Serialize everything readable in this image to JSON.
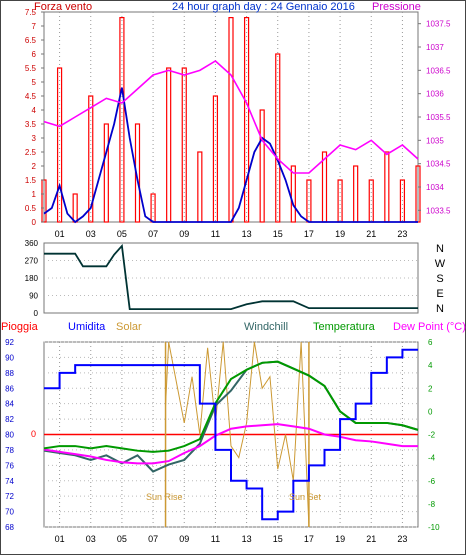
{
  "top_chart": {
    "title": "24 hour graph day : 24 Gennaio 2016",
    "left_label": "Forza vento",
    "right_label": "Pressione",
    "left_ticks": [
      "0",
      "0.5",
      "1",
      "1.5",
      "2",
      "2.5",
      "3",
      "3.5",
      "4",
      "4.5",
      "5",
      "5.5",
      "6",
      "6.5",
      "7",
      "7.5"
    ],
    "right_ticks": [
      "1033.5",
      "1034",
      "1034.5",
      "1035",
      "1035.5",
      "1036",
      "1036.5",
      "1037",
      "1037.5"
    ],
    "x_ticks": [
      "01",
      "03",
      "05",
      "07",
      "09",
      "11",
      "13",
      "15",
      "17",
      "19",
      "21",
      "23"
    ],
    "colors": {
      "wind_bars": "#ff0000",
      "wind_line": "#0000cc",
      "pressure": "#ff00ff",
      "axis_left": "#cc0000",
      "axis_right": "#cc00cc",
      "title": "#0033cc"
    }
  },
  "dir_chart": {
    "left_ticks": [
      "0",
      "90",
      "180",
      "270",
      "360"
    ],
    "right_labels": [
      "N",
      "W",
      "S",
      "E",
      "N"
    ]
  },
  "bottom_chart": {
    "labels": {
      "pioggia": "Pioggia",
      "umidita": "Umidita",
      "solar": "Solar",
      "windchill": "Windchill",
      "temperatura": "Temperatura",
      "dewpoint": "Dew Point (°C)"
    },
    "left_ticks": [
      "68",
      "70",
      "72",
      "74",
      "76",
      "78",
      "80",
      "82",
      "84",
      "86",
      "88",
      "90",
      "92"
    ],
    "right_ticks": [
      "-10",
      "-8",
      "-6",
      "-4",
      "-2",
      "0",
      "2",
      "4",
      "6"
    ],
    "x_ticks": [
      "01",
      "03",
      "05",
      "07",
      "09",
      "11",
      "13",
      "15",
      "17",
      "19",
      "21",
      "23"
    ],
    "rain_zero": "0",
    "annotations": {
      "sunrise": "Sun Rise",
      "sunset": "Sun Set"
    },
    "colors": {
      "pioggia": "#ff0000",
      "umidita": "#0000ff",
      "solar": "#cc9933",
      "windchill": "#336666",
      "temperatura": "#009900",
      "dewpoint": "#ff00ff"
    }
  },
  "chart_data": [
    {
      "type": "bar",
      "title": "24 hour graph day : 24 Gennaio 2016",
      "ylabel": "Forza vento",
      "y2label": "Pressione",
      "ylim": [
        0,
        7.5
      ],
      "y2lim": [
        1033.25,
        1037.75
      ],
      "xlim": [
        0,
        24
      ],
      "series": [
        {
          "name": "Forza vento",
          "color": "#ff0000",
          "x": [
            0,
            1,
            2,
            3,
            4,
            5,
            6,
            7,
            8,
            9,
            10,
            11,
            12,
            13,
            14,
            15,
            16,
            17,
            18,
            19,
            20,
            21,
            22,
            23,
            24
          ],
          "values": [
            1.5,
            5.5,
            1,
            4.5,
            3.5,
            7.3,
            3.5,
            1,
            5.5,
            5.5,
            2.5,
            4.5,
            7.3,
            7.3,
            4,
            6,
            2,
            1.5,
            2.5,
            1.5,
            2,
            1.5,
            2.5,
            1.5,
            2
          ]
        },
        {
          "name": "Forza vento (media)",
          "color": "#0000cc",
          "x": [
            0,
            0.5,
            1,
            1.5,
            2,
            2.5,
            3,
            3.5,
            4,
            4.5,
            5,
            5.5,
            6,
            6.5,
            7,
            7.5,
            8,
            9,
            10,
            11,
            12,
            12.5,
            13,
            13.5,
            14,
            14.5,
            15,
            15.5,
            16,
            16.5,
            17,
            18,
            19,
            20,
            21,
            22,
            23,
            24
          ],
          "values": [
            0.3,
            0.5,
            1.3,
            0.3,
            0,
            0.2,
            0.5,
            1.5,
            2.5,
            3.5,
            4.8,
            3,
            1.5,
            0.2,
            0,
            0,
            0,
            0,
            0,
            0,
            0,
            0.5,
            1.5,
            2.5,
            3,
            2.8,
            2.2,
            1.5,
            0.6,
            0.2,
            0,
            0,
            0,
            0,
            0,
            0,
            0,
            0
          ]
        },
        {
          "name": "Pressione",
          "color": "#ff00ff",
          "x": [
            0,
            1,
            2,
            3,
            4,
            5,
            6,
            7,
            8,
            9,
            10,
            11,
            12,
            13,
            14,
            15,
            16,
            17,
            18,
            19,
            20,
            21,
            22,
            23,
            24
          ],
          "values": [
            1035.4,
            1035.3,
            1035.5,
            1035.7,
            1035.9,
            1035.8,
            1036.1,
            1036.4,
            1036.5,
            1036.4,
            1036.5,
            1036.7,
            1036.4,
            1035.8,
            1035,
            1034.6,
            1034.3,
            1034.3,
            1034.6,
            1034.9,
            1034.8,
            1035,
            1034.7,
            1034.9,
            1034.6
          ]
        }
      ]
    },
    {
      "type": "line",
      "ylim": [
        0,
        360
      ],
      "xlim": [
        0,
        24
      ],
      "series": [
        {
          "x": [
            0,
            2,
            2.5,
            3,
            4,
            4.5,
            5,
            5.5,
            8,
            10,
            11,
            12,
            13,
            14,
            15,
            16,
            17,
            18,
            19,
            20,
            21,
            22,
            23,
            24
          ],
          "values": [
            305,
            305,
            240,
            240,
            240,
            300,
            345,
            20,
            20,
            20,
            20,
            20,
            45,
            60,
            60,
            60,
            25,
            25,
            25,
            25,
            25,
            25,
            25,
            25
          ]
        }
      ]
    },
    {
      "type": "line",
      "ylim": [
        68,
        92
      ],
      "y2lim": [
        -10,
        6
      ],
      "xlim": [
        0,
        24
      ],
      "series": [
        {
          "name": "Umidita",
          "color": "#0000ff",
          "x": [
            0,
            1,
            2,
            3,
            4,
            5,
            6,
            7,
            8,
            9,
            10,
            11,
            12,
            13,
            14,
            15,
            16,
            17,
            18,
            19,
            20,
            21,
            22,
            23,
            24
          ],
          "values": [
            86,
            88,
            89,
            89,
            89,
            89,
            89,
            89,
            89,
            89,
            84,
            78,
            74,
            73,
            69,
            70,
            74,
            76,
            78,
            82,
            84,
            88,
            90,
            91,
            91
          ]
        },
        {
          "name": "Temperatura",
          "color": "#009900",
          "x": [
            0,
            1,
            2,
            3,
            4,
            5,
            6,
            7,
            8,
            9,
            10,
            11,
            12,
            13,
            14,
            15,
            16,
            17,
            18,
            19,
            20,
            21,
            22,
            23,
            24
          ],
          "values": [
            -3.2,
            -3.0,
            -3.0,
            -3.2,
            -3.0,
            -3.2,
            -3.4,
            -3.5,
            -3.4,
            -3.0,
            -2.4,
            0.7,
            2.8,
            3.6,
            4.2,
            4.3,
            3.7,
            3.1,
            2.2,
            0,
            -1.0,
            -1.0,
            -1.0,
            -1.2,
            -1.6
          ]
        },
        {
          "name": "Windchill",
          "color": "#336666",
          "x": [
            0,
            1,
            2,
            3,
            4,
            5,
            6,
            7,
            8,
            9,
            10,
            11,
            12,
            13,
            14,
            15,
            16,
            17,
            18,
            19,
            20,
            21,
            22,
            23,
            24
          ],
          "values": [
            -3.4,
            -3.6,
            -3.8,
            -4.2,
            -3.8,
            -4.5,
            -3.8,
            -5.2,
            -4.6,
            -4.2,
            -2.8,
            0.5,
            1.8,
            3.6,
            4.2,
            4.3,
            3.7,
            3.1,
            2.2,
            0,
            -1.0,
            -1.0,
            -1.0,
            -1.2,
            -1.6
          ]
        },
        {
          "name": "Dew Point (°C)",
          "color": "#ff00ff",
          "x": [
            0,
            1,
            2,
            3,
            4,
            5,
            6,
            7,
            8,
            9,
            10,
            11,
            12,
            13,
            14,
            15,
            16,
            17,
            18,
            19,
            20,
            21,
            22,
            23,
            24
          ],
          "values": [
            -3.3,
            -3.5,
            -3.7,
            -3.9,
            -4.2,
            -4.4,
            -4.5,
            -4.5,
            -4.3,
            -3.6,
            -3.0,
            -2.1,
            -1.5,
            -1.3,
            -1.2,
            -1.1,
            -1.3,
            -1.5,
            -2.0,
            -2.2,
            -2.5,
            -2.6,
            -2.8,
            -3.0,
            -3.0
          ]
        },
        {
          "name": "Solar",
          "color": "#cc9933",
          "x": [
            7.8,
            8,
            9,
            9.5,
            10,
            10.5,
            11,
            11.5,
            12,
            12.5,
            13,
            13.5,
            14,
            14.5,
            15,
            15.5,
            16,
            16.5,
            17
          ],
          "values": [
            0.5,
            6,
            -1,
            3,
            -2,
            5.5,
            -1,
            6,
            -3,
            -4,
            -1,
            6,
            2,
            3,
            -5,
            -2,
            -6,
            6,
            -10
          ]
        },
        {
          "name": "Pioggia",
          "color": "#ff0000",
          "x": [
            0,
            24
          ],
          "values": [
            80,
            80
          ]
        }
      ]
    }
  ]
}
